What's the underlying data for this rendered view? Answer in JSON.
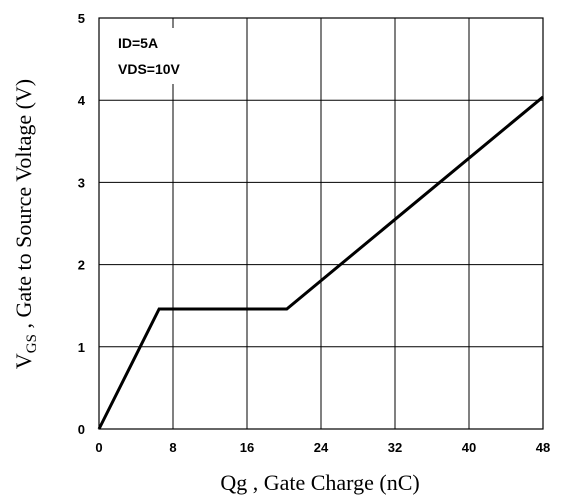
{
  "chart_data": {
    "type": "line",
    "title": "",
    "xlabel": "Qg , Gate Charge (nC)",
    "ylabel_main": "V",
    "ylabel_sub": "GS",
    "ylabel_rest": " , Gate to Source Voltage (V)",
    "xlim": [
      0,
      48
    ],
    "ylim": [
      0,
      5
    ],
    "x_ticks": [
      "0",
      "8",
      "16",
      "24",
      "32",
      "40",
      "48"
    ],
    "y_ticks": [
      "0",
      "1",
      "2",
      "3",
      "4",
      "5"
    ],
    "grid": true,
    "annotations": [
      "ID=5A",
      "VDS=10V"
    ],
    "series": [
      {
        "x": [
          0,
          6.5,
          20.3,
          48
        ],
        "y": [
          0,
          1.46,
          1.46,
          4.04
        ]
      }
    ]
  }
}
